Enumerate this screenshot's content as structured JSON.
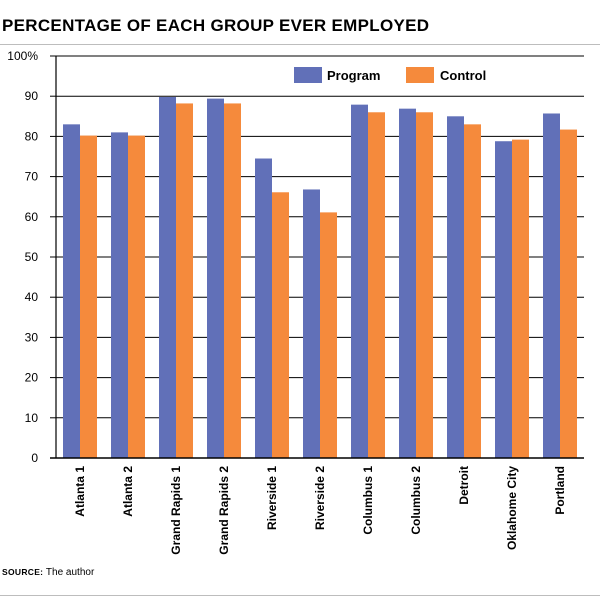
{
  "page": {
    "title": "PERCENTAGE OF EACH GROUP EVER EMPLOYED",
    "source_label": "SOURCE:",
    "source_text": "The author"
  },
  "chart_data": {
    "type": "bar",
    "title": "PERCENTAGE OF EACH GROUP EVER EMPLOYED",
    "xlabel": "",
    "ylabel": "",
    "ylim": [
      0,
      100
    ],
    "yticks": [
      0,
      10,
      20,
      30,
      40,
      50,
      60,
      70,
      80,
      90,
      100
    ],
    "ytick_labels": [
      "0",
      "10",
      "20",
      "30",
      "40",
      "50",
      "60",
      "70",
      "80",
      "90",
      "100%"
    ],
    "grid": true,
    "legend_position": "top-right",
    "categories": [
      "Atlanta 1",
      "Atlanta 2",
      "Grand Rapids 1",
      "Grand Rapids 2",
      "Riverside 1",
      "Riverside 2",
      "Columbus 1",
      "Columbus 2",
      "Detroit",
      "Oklahome City",
      "Portland"
    ],
    "series": [
      {
        "name": "Program",
        "color": "#6170b8",
        "values": [
          83.0,
          81.0,
          89.8,
          89.4,
          74.5,
          66.8,
          87.9,
          86.9,
          85.0,
          78.8,
          85.7
        ]
      },
      {
        "name": "Control",
        "color": "#f58a3c",
        "values": [
          80.2,
          80.2,
          88.2,
          88.2,
          66.1,
          61.1,
          86.0,
          86.0,
          83.0,
          79.2,
          81.7
        ]
      }
    ]
  }
}
